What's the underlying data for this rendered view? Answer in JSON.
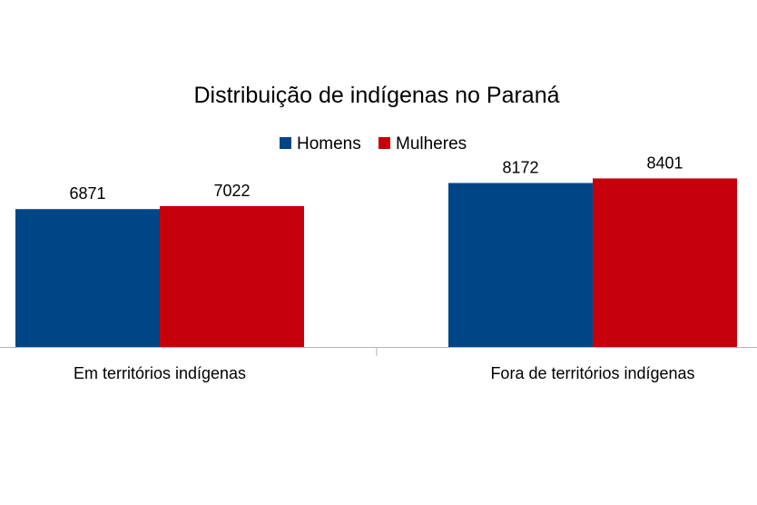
{
  "chart_data": {
    "type": "bar",
    "title": "Distribuição de indígenas no Paraná",
    "categories": [
      "Em territórios indígenas",
      "Fora de territórios indígenas"
    ],
    "series": [
      {
        "name": "Homens",
        "values": [
          6871,
          8172
        ],
        "color": "#004586"
      },
      {
        "name": "Mulheres",
        "values": [
          7022,
          8401
        ],
        "color": "#c5000b"
      }
    ],
    "ylim": [
      0,
      10000
    ],
    "legend_position": "top",
    "grid": false,
    "data_labels": true
  }
}
